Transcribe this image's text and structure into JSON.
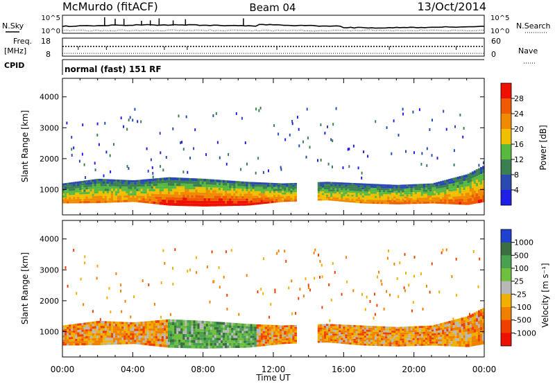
{
  "header": {
    "station": "McMurdo (fitACF)",
    "beam": "Beam 04",
    "date": "13/Oct/2014"
  },
  "top_panels": {
    "nsky_label": "N.Sky",
    "nsearch_label": "N.Search",
    "nsky_ticks": [
      "10^5",
      "10^0"
    ],
    "nsearch_ticks": [
      "10^5",
      "10^0"
    ],
    "freq_label": "Freq.",
    "freq_unit": "[MHz]",
    "freq_ticks": [
      "18",
      "8"
    ],
    "nave_label": "Nave",
    "nave_ticks": [
      "60",
      "0"
    ],
    "cpid_label": "CPID",
    "cpid_text": "normal (fast) 151 RF"
  },
  "chart_data": [
    {
      "type": "heatmap",
      "parameter": "power",
      "ylabel": "Slant Range [km]",
      "xlabel": "Time UT",
      "x_ticks": [
        "00:00",
        "04:00",
        "08:00",
        "12:00",
        "16:00",
        "20:00",
        "00:00"
      ],
      "xlim": [
        0,
        24
      ],
      "ylim": [
        180,
        4600
      ],
      "y_ticks": [
        1000,
        2000,
        3000,
        4000
      ],
      "colorbar_label": "Power [dB]",
      "colorbar_ticks": [
        "4",
        "8",
        "12",
        "16",
        "20",
        "24",
        "28"
      ],
      "colorbar_colors": [
        "#1f1fe6",
        "#2a4ab2",
        "#3b8050",
        "#58b840",
        "#f0c000",
        "#f08a00",
        "#f05a00",
        "#ee1000"
      ],
      "colors": {
        "low": "#1f1fe6",
        "mid": "#58b840",
        "high": "#ee1000"
      },
      "echo_bands": [
        {
          "t": 0.0,
          "low": 550,
          "high": 1200,
          "level": 0.55
        },
        {
          "t": 2.0,
          "low": 560,
          "high": 1350,
          "level": 0.6
        },
        {
          "t": 4.0,
          "low": 600,
          "high": 1300,
          "level": 0.55
        },
        {
          "t": 6.0,
          "low": 480,
          "high": 1400,
          "level": 0.8
        },
        {
          "t": 8.0,
          "low": 450,
          "high": 1350,
          "level": 0.9
        },
        {
          "t": 10.5,
          "low": 480,
          "high": 1250,
          "level": 0.85
        },
        {
          "t": 12.5,
          "low": 600,
          "high": 1200,
          "level": 0.6
        },
        {
          "t": 15.0,
          "low": 650,
          "high": 1250,
          "level": 0.5
        },
        {
          "t": 17.0,
          "low": 550,
          "high": 1200,
          "level": 0.55
        },
        {
          "t": 19.0,
          "low": 520,
          "high": 1150,
          "level": 0.65
        },
        {
          "t": 21.0,
          "low": 550,
          "high": 1200,
          "level": 0.6
        },
        {
          "t": 23.0,
          "low": 500,
          "high": 1500,
          "level": 0.7
        },
        {
          "t": 24.0,
          "low": 600,
          "high": 1800,
          "level": 0.7
        }
      ]
    },
    {
      "type": "heatmap",
      "parameter": "velocity",
      "ylabel": "Slant Range [km]",
      "xlabel": "Time UT",
      "x_ticks": [
        "00:00",
        "04:00",
        "08:00",
        "12:00",
        "16:00",
        "20:00",
        "00:00"
      ],
      "xlim": [
        0,
        24
      ],
      "ylim": [
        180,
        4600
      ],
      "y_ticks": [
        1000,
        2000,
        3000,
        4000
      ],
      "colorbar_label": "Velocity [m s⁻¹]",
      "colorbar_ticks": [
        "1000",
        "500",
        "100",
        "25",
        "-25",
        "-100",
        "-500",
        "-1000"
      ],
      "colorbar_colors": [
        "#2040d0",
        "#3a7040",
        "#48a050",
        "#70c040",
        "#b8b8b8",
        "#f0b000",
        "#f08000",
        "#f04000",
        "#ee1000"
      ],
      "echo_bands": [
        {
          "t": 0.0,
          "low": 550,
          "high": 1200,
          "level": 0.55
        },
        {
          "t": 2.0,
          "low": 560,
          "high": 1350,
          "level": 0.6
        },
        {
          "t": 4.0,
          "low": 600,
          "high": 1300,
          "level": 0.55
        },
        {
          "t": 6.0,
          "low": 480,
          "high": 1400,
          "level": 0.8
        },
        {
          "t": 8.0,
          "low": 450,
          "high": 1350,
          "level": 0.9
        },
        {
          "t": 10.5,
          "low": 480,
          "high": 1250,
          "level": 0.85
        },
        {
          "t": 12.5,
          "low": 600,
          "high": 1200,
          "level": 0.6
        },
        {
          "t": 15.0,
          "low": 650,
          "high": 1250,
          "level": 0.5
        },
        {
          "t": 17.0,
          "low": 550,
          "high": 1200,
          "level": 0.55
        },
        {
          "t": 19.0,
          "low": 520,
          "high": 1150,
          "level": 0.65
        },
        {
          "t": 21.0,
          "low": 550,
          "high": 1200,
          "level": 0.6
        },
        {
          "t": 23.0,
          "low": 500,
          "high": 1500,
          "level": 0.7
        },
        {
          "t": 24.0,
          "low": 600,
          "high": 1800,
          "level": 0.7
        }
      ]
    }
  ]
}
